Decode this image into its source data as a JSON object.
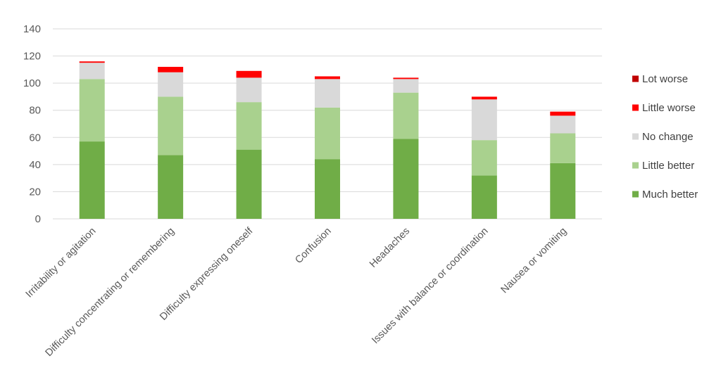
{
  "chart_data": {
    "type": "bar",
    "stacked": true,
    "categories": [
      "Irritability or agitation",
      "Difficulty concentrating or remembering",
      "Difficulty expressing oneself",
      "Confusion",
      "Headaches",
      "Issues with balance or coordination",
      "Nausea or vomiting"
    ],
    "series": [
      {
        "name": "Much better",
        "color": "#70ad47",
        "values": [
          57,
          47,
          51,
          44,
          59,
          32,
          41
        ]
      },
      {
        "name": "Little better",
        "color": "#a9d18e",
        "values": [
          46,
          43,
          35,
          38,
          34,
          26,
          22
        ]
      },
      {
        "name": "No change",
        "color": "#d9d9d9",
        "values": [
          12,
          18,
          18,
          21,
          10,
          30,
          13
        ]
      },
      {
        "name": "Little worse",
        "color": "#ff0000",
        "values": [
          1,
          4,
          5,
          2,
          1,
          2,
          3
        ]
      },
      {
        "name": "Lot worse",
        "color": "#c00000",
        "values": [
          0,
          0,
          0,
          0,
          0,
          0,
          0
        ]
      }
    ],
    "legend_order": [
      "Lot worse",
      "Little worse",
      "No change",
      "Little better",
      "Much better"
    ],
    "yticks": [
      "0",
      "20",
      "40",
      "60",
      "80",
      "100",
      "120",
      "140"
    ],
    "ylim": [
      0,
      140
    ],
    "grid": true,
    "legend_position": "right"
  }
}
